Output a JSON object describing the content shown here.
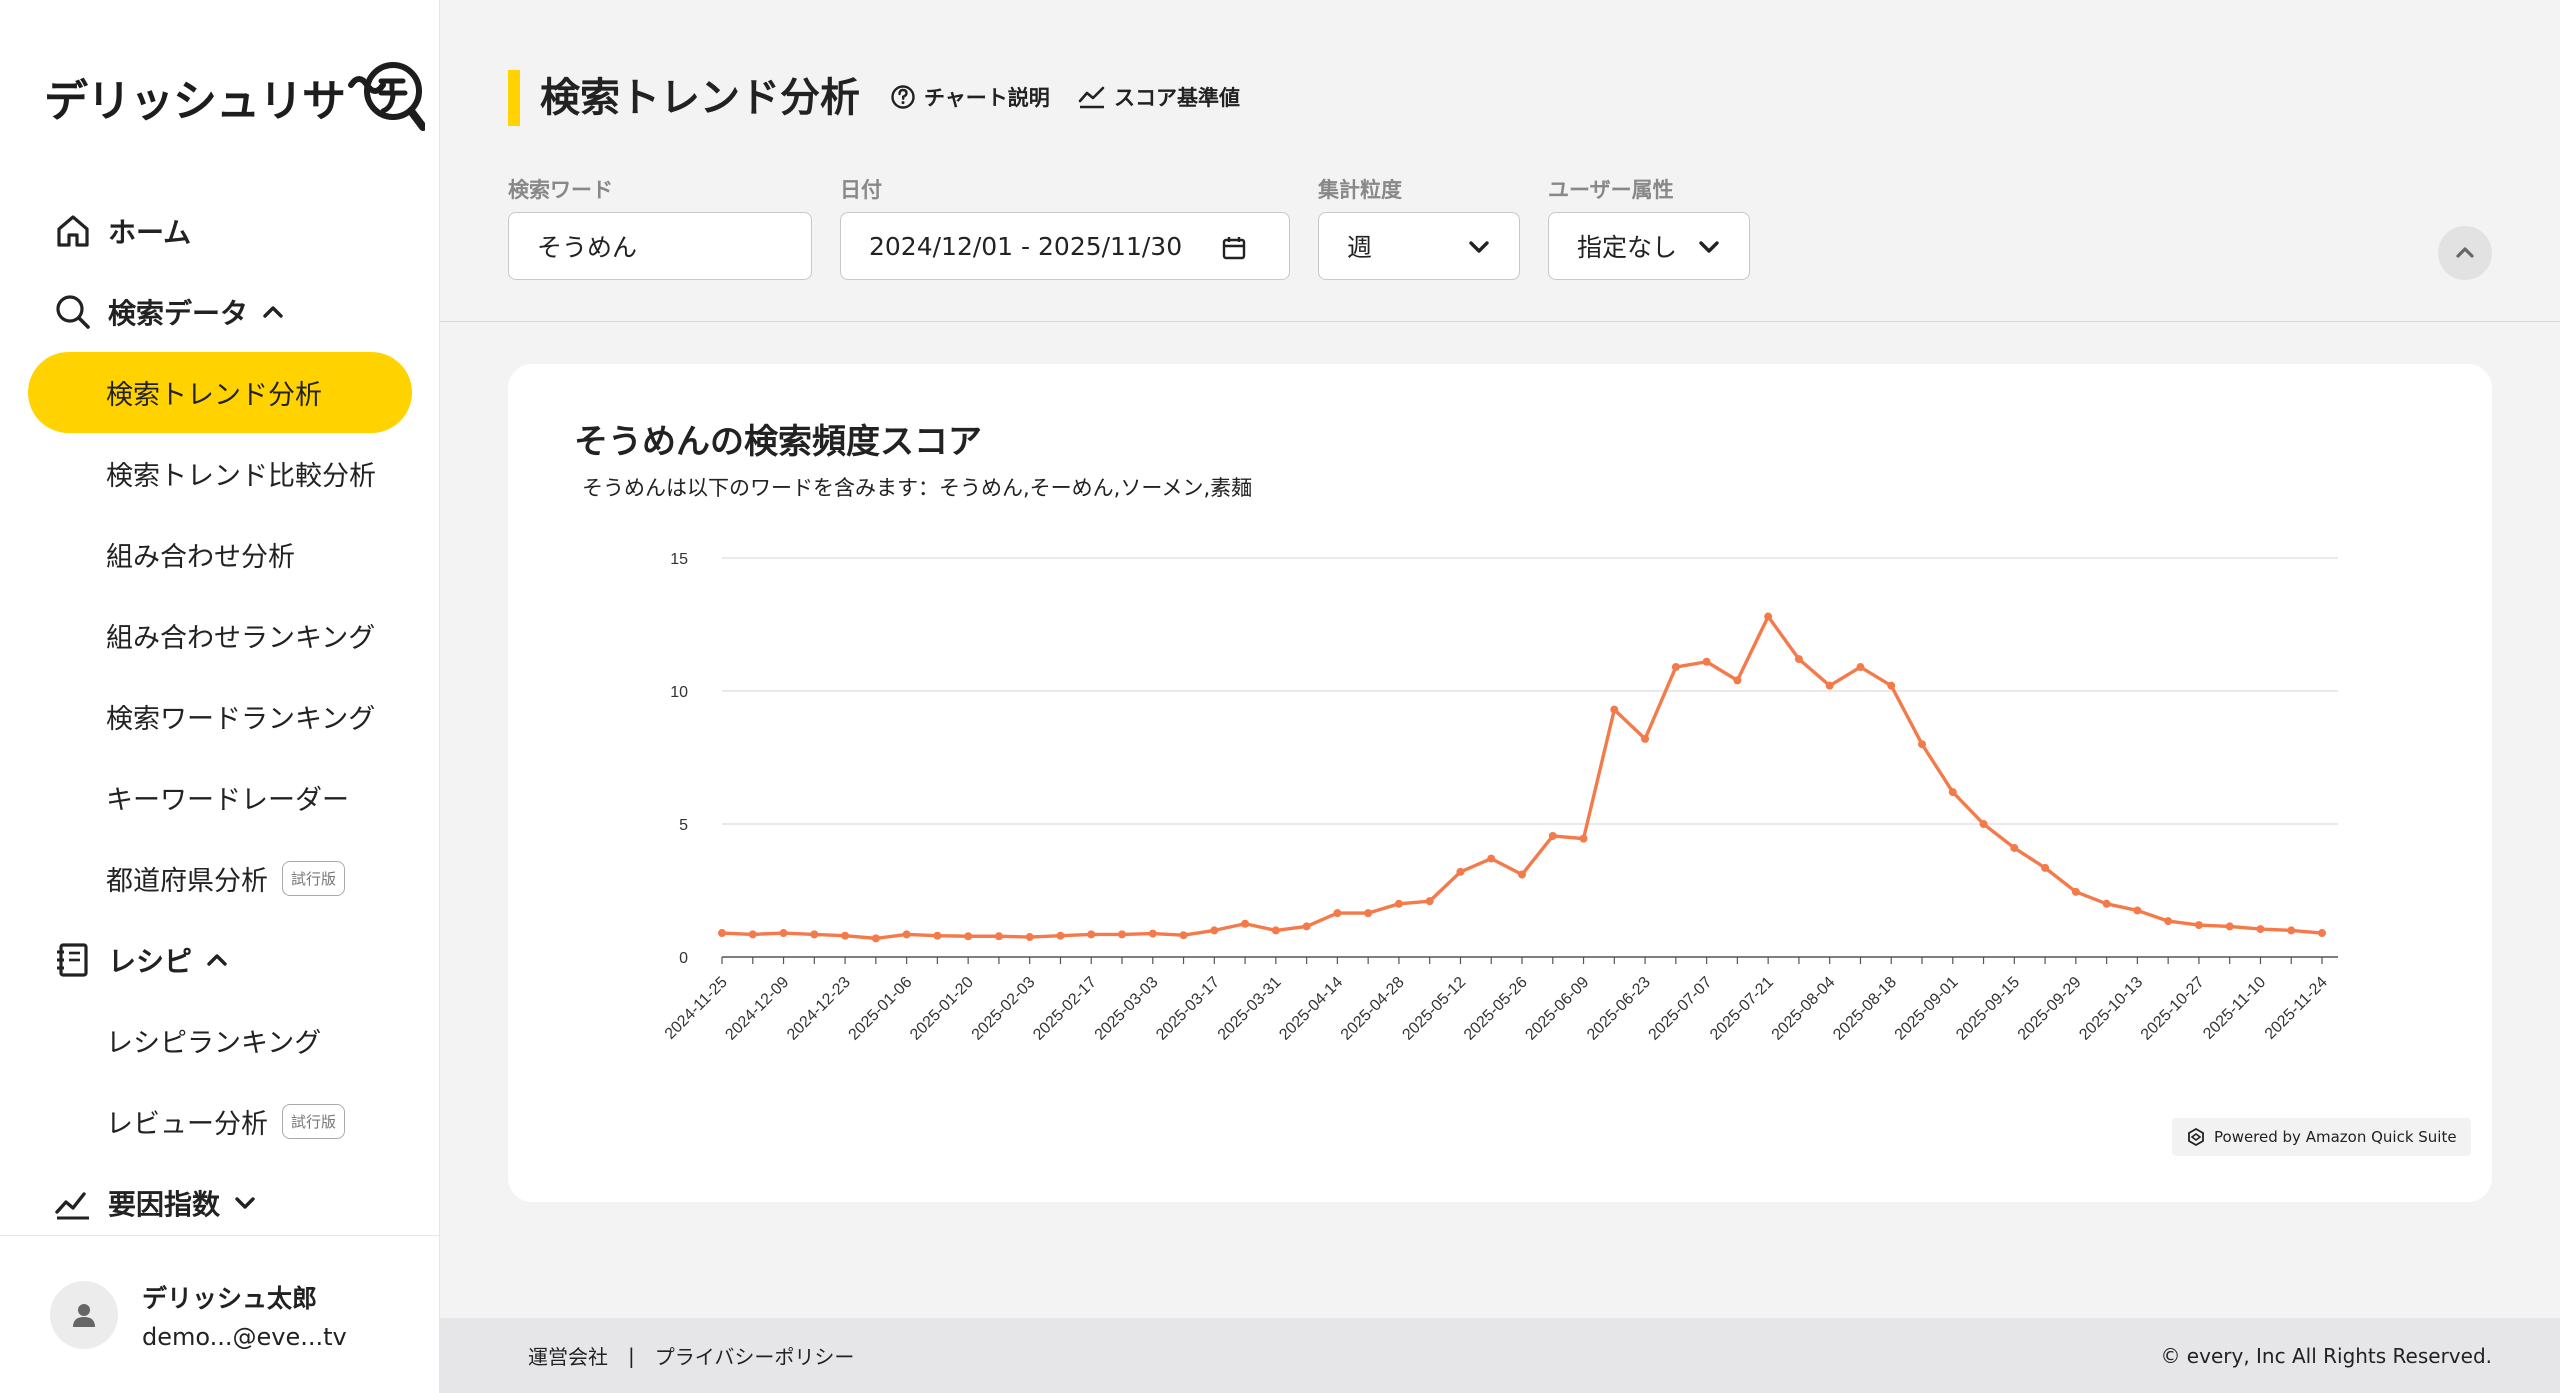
{
  "app": {
    "logo_text": "デリッシュリサ",
    "logo_mark": "〜チ"
  },
  "sidebar": {
    "home": "ホーム",
    "search_data": "検索データ",
    "search_items": [
      {
        "label": "検索トレンド分析",
        "active": true,
        "trial": ""
      },
      {
        "label": "検索トレンド比較分析",
        "active": false,
        "trial": ""
      },
      {
        "label": "組み合わせ分析",
        "active": false,
        "trial": ""
      },
      {
        "label": "組み合わせランキング",
        "active": false,
        "trial": ""
      },
      {
        "label": "検索ワードランキング",
        "active": false,
        "trial": ""
      },
      {
        "label": "キーワードレーダー",
        "active": false,
        "trial": ""
      },
      {
        "label": "都道府県分析",
        "active": false,
        "trial": "試行版"
      }
    ],
    "recipe": "レシピ",
    "recipe_items": [
      {
        "label": "レシピランキング",
        "trial": ""
      },
      {
        "label": "レビュー分析",
        "trial": "試行版"
      }
    ],
    "factor": "要因指数",
    "user": {
      "name": "デリッシュ太郎",
      "email": "demo...@eve...tv"
    }
  },
  "header": {
    "title": "検索トレンド分析",
    "chart_help": "チャート説明",
    "score_base": "スコア基準値",
    "filters": {
      "keyword_label": "検索ワード",
      "keyword_value": "そうめん",
      "date_label": "日付",
      "date_value": "2024/12/01 - 2025/11/30",
      "granularity_label": "集計粒度",
      "granularity_value": "週",
      "attribute_label": "ユーザー属性",
      "attribute_value": "指定なし"
    }
  },
  "chart": {
    "title": "そうめんの検索頻度スコア",
    "subtitle": "そうめんは以下のワードを含みます：そうめん,そーめん,ソーメン,素麺",
    "powered": "Powered by Amazon Quick Suite"
  },
  "chart_data": {
    "type": "line",
    "title": "そうめんの検索頻度スコア",
    "xlabel": "",
    "ylabel": "",
    "ylim": [
      0,
      15
    ],
    "yticks": [
      0,
      5,
      10,
      15
    ],
    "grid": true,
    "color": "#f47a4a",
    "x": [
      "2024-11-25",
      "2024-12-02",
      "2024-12-09",
      "2024-12-16",
      "2024-12-23",
      "2024-12-30",
      "2025-01-06",
      "2025-01-13",
      "2025-01-20",
      "2025-01-27",
      "2025-02-03",
      "2025-02-10",
      "2025-02-17",
      "2025-02-24",
      "2025-03-03",
      "2025-03-10",
      "2025-03-17",
      "2025-03-24",
      "2025-03-31",
      "2025-04-07",
      "2025-04-14",
      "2025-04-21",
      "2025-04-28",
      "2025-05-05",
      "2025-05-12",
      "2025-05-19",
      "2025-05-26",
      "2025-06-02",
      "2025-06-09",
      "2025-06-16",
      "2025-06-23",
      "2025-06-30",
      "2025-07-07",
      "2025-07-14",
      "2025-07-21",
      "2025-07-28",
      "2025-08-04",
      "2025-08-11",
      "2025-08-18",
      "2025-08-25",
      "2025-09-01",
      "2025-09-08",
      "2025-09-15",
      "2025-09-22",
      "2025-09-29",
      "2025-10-06",
      "2025-10-13",
      "2025-10-20",
      "2025-10-27",
      "2025-11-03",
      "2025-11-10",
      "2025-11-17",
      "2025-11-24"
    ],
    "x_tick_labels": [
      "2024-11-25",
      "2024-12-09",
      "2024-12-23",
      "2025-01-06",
      "2025-01-20",
      "2025-02-03",
      "2025-02-17",
      "2025-03-03",
      "2025-03-17",
      "2025-03-31",
      "2025-04-14",
      "2025-04-28",
      "2025-05-12",
      "2025-05-26",
      "2025-06-09",
      "2025-06-23",
      "2025-07-07",
      "2025-07-21",
      "2025-08-04",
      "2025-08-18",
      "2025-09-01",
      "2025-09-15",
      "2025-09-29",
      "2025-10-13",
      "2025-10-27",
      "2025-11-10",
      "2025-11-24"
    ],
    "y": [
      0.9,
      0.85,
      0.9,
      0.85,
      0.8,
      0.7,
      0.85,
      0.8,
      0.78,
      0.78,
      0.75,
      0.8,
      0.85,
      0.85,
      0.88,
      0.82,
      1.0,
      1.25,
      1.0,
      1.15,
      1.65,
      1.65,
      2.0,
      2.1,
      3.2,
      3.7,
      3.1,
      4.55,
      4.45,
      9.3,
      8.2,
      10.9,
      11.1,
      10.4,
      12.8,
      11.2,
      10.2,
      10.9,
      10.2,
      8.0,
      6.2,
      5.0,
      4.1,
      3.35,
      2.45,
      2.0,
      1.75,
      1.35,
      1.2,
      1.15,
      1.05,
      1.0,
      0.9
    ]
  },
  "footer": {
    "company": "運営会社",
    "separator": "|",
    "privacy": "プライバシーポリシー",
    "copyright": "© every, Inc All Rights Reserved."
  }
}
